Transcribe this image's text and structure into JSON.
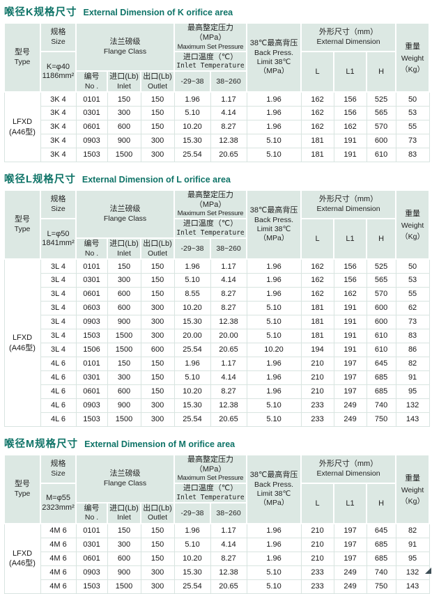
{
  "theme": {
    "title_color": "#0e7367",
    "header_bg": "#dce8e3",
    "corner_color": "#3d4d55"
  },
  "labels": {
    "type": [
      "型号",
      "Type"
    ],
    "size": [
      "规格",
      "Size"
    ],
    "flange": [
      "法兰磅级",
      "Flange  Class"
    ],
    "no": [
      "编号",
      "No ."
    ],
    "inlet": [
      "进口(Lb)",
      "Inlet"
    ],
    "outlet": [
      "出口(Lb)",
      "Outlet"
    ],
    "max_set": [
      "最高整定压力（MPa）",
      "Maximum Set Pressure"
    ],
    "inlet_temp": [
      "进口温度（℃）",
      "Inlet Temperature"
    ],
    "temp_low": "-29~38",
    "temp_high": "38~260",
    "back_press": [
      "38℃最高背压",
      "Back Press.",
      "Limit 38℃",
      "（MPa）"
    ],
    "ext_dim": [
      "外形尺寸（mm）",
      "External Dimension"
    ],
    "dim_l": "L",
    "dim_l1": "L1",
    "dim_h": "H",
    "weight": [
      "重量",
      "Weight",
      "（Kg）"
    ]
  },
  "tables": [
    {
      "id": "K",
      "title_zh": "喉径K规格尺寸",
      "title_en": "External Dimension of K orifice area",
      "size_spec": [
        "K=φ40",
        "1186mm²"
      ],
      "type_label": [
        "LFXD",
        "(A46型)"
      ],
      "rows": [
        [
          "3K 4",
          "0101",
          "150",
          "150",
          "1.96",
          "1.17",
          "1.96",
          "162",
          "156",
          "525",
          "50"
        ],
        [
          "3K 4",
          "0301",
          "300",
          "150",
          "5.10",
          "4.14",
          "1.96",
          "162",
          "156",
          "565",
          "53"
        ],
        [
          "3K 4",
          "0601",
          "600",
          "150",
          "10.20",
          "8.27",
          "1.96",
          "162",
          "162",
          "570",
          "55"
        ],
        [
          "3K 4",
          "0903",
          "900",
          "300",
          "15.30",
          "12.38",
          "5.10",
          "181",
          "191",
          "600",
          "73"
        ],
        [
          "3K 4",
          "1503",
          "1500",
          "300",
          "25.54",
          "20.65",
          "5.10",
          "181",
          "191",
          "610",
          "83"
        ]
      ]
    },
    {
      "id": "L",
      "title_zh": "喉径L规格尺寸",
      "title_en": "External Dimension of L orifice area",
      "size_spec": [
        "L=φ50",
        "1841mm²"
      ],
      "type_label": [
        "LFXD",
        "(A46型)"
      ],
      "rows": [
        [
          "3L 4",
          "0101",
          "150",
          "150",
          "1.96",
          "1.17",
          "1.96",
          "162",
          "156",
          "525",
          "50"
        ],
        [
          "3L 4",
          "0301",
          "300",
          "150",
          "5.10",
          "4.14",
          "1.96",
          "162",
          "156",
          "565",
          "53"
        ],
        [
          "3L 4",
          "0601",
          "600",
          "150",
          "8.55",
          "8.27",
          "1.96",
          "162",
          "162",
          "570",
          "55"
        ],
        [
          "3L 4",
          "0603",
          "600",
          "300",
          "10.20",
          "8.27",
          "5.10",
          "181",
          "191",
          "600",
          "62"
        ],
        [
          "3L 4",
          "0903",
          "900",
          "300",
          "15.30",
          "12.38",
          "5.10",
          "181",
          "191",
          "600",
          "73"
        ],
        [
          "3L 4",
          "1503",
          "1500",
          "300",
          "20.00",
          "20.00",
          "5.10",
          "181",
          "191",
          "610",
          "83"
        ],
        [
          "3L 4",
          "1506",
          "1500",
          "600",
          "25.54",
          "20.65",
          "10.20",
          "194",
          "191",
          "610",
          "86"
        ],
        [
          "4L 6",
          "0101",
          "150",
          "150",
          "1.96",
          "1.17",
          "1.96",
          "210",
          "197",
          "645",
          "82"
        ],
        [
          "4L 6",
          "0301",
          "300",
          "150",
          "5.10",
          "4.14",
          "1.96",
          "210",
          "197",
          "685",
          "91"
        ],
        [
          "4L 6",
          "0601",
          "600",
          "150",
          "10.20",
          "8.27",
          "1.96",
          "210",
          "197",
          "685",
          "95"
        ],
        [
          "4L 6",
          "0903",
          "900",
          "300",
          "15.30",
          "12.38",
          "5.10",
          "233",
          "249",
          "740",
          "132"
        ],
        [
          "4L 6",
          "1503",
          "1500",
          "300",
          "25.54",
          "20.65",
          "5.10",
          "233",
          "249",
          "750",
          "143"
        ]
      ]
    },
    {
      "id": "M",
      "title_zh": "喉径M规格尺寸",
      "title_en": "External Dimension of M orifice area",
      "size_spec": [
        "M=φ55",
        "2323mm²"
      ],
      "type_label": [
        "LFXD",
        "(A46型)"
      ],
      "rows": [
        [
          "4M 6",
          "0101",
          "150",
          "150",
          "1.96",
          "1.17",
          "1.96",
          "210",
          "197",
          "645",
          "82"
        ],
        [
          "4M 6",
          "0301",
          "300",
          "150",
          "5.10",
          "4.14",
          "1.96",
          "210",
          "197",
          "685",
          "91"
        ],
        [
          "4M 6",
          "0601",
          "600",
          "150",
          "10.20",
          "8.27",
          "1.96",
          "210",
          "197",
          "685",
          "95"
        ],
        [
          "4M 6",
          "0903",
          "900",
          "300",
          "15.30",
          "12.38",
          "5.10",
          "233",
          "249",
          "740",
          "132"
        ],
        [
          "4M 6",
          "1503",
          "1500",
          "300",
          "25.54",
          "20.65",
          "5.10",
          "233",
          "249",
          "750",
          "143"
        ]
      ]
    }
  ]
}
